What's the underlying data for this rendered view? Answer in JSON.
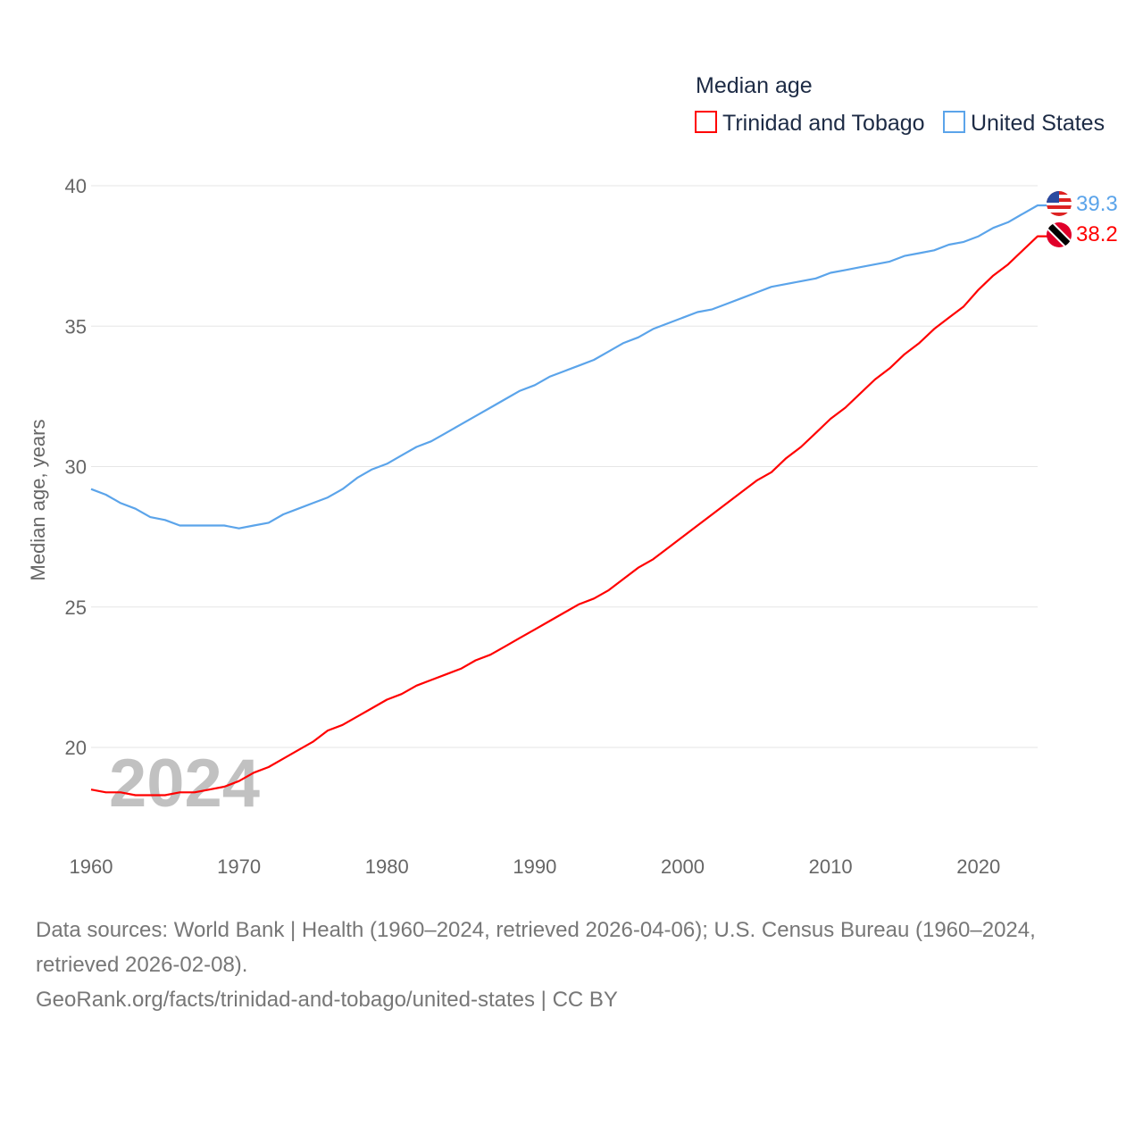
{
  "chart_data": {
    "type": "line",
    "title": "Median age",
    "xlabel": "",
    "ylabel": "Median age, years",
    "xlim": [
      1960,
      2024
    ],
    "ylim": [
      17,
      41
    ],
    "x_ticks": [
      "1960",
      "1970",
      "1980",
      "1990",
      "2000",
      "2010",
      "2020"
    ],
    "y_ticks": [
      "20",
      "25",
      "30",
      "35",
      "40"
    ],
    "grid": true,
    "legend_placement": "top-right",
    "watermark_year": "2024",
    "x": [
      1960,
      1961,
      1962,
      1963,
      1964,
      1965,
      1966,
      1967,
      1968,
      1969,
      1970,
      1971,
      1972,
      1973,
      1974,
      1975,
      1976,
      1977,
      1978,
      1979,
      1980,
      1981,
      1982,
      1983,
      1984,
      1985,
      1986,
      1987,
      1988,
      1989,
      1990,
      1991,
      1992,
      1993,
      1994,
      1995,
      1996,
      1997,
      1998,
      1999,
      2000,
      2001,
      2002,
      2003,
      2004,
      2005,
      2006,
      2007,
      2008,
      2009,
      2010,
      2011,
      2012,
      2013,
      2014,
      2015,
      2016,
      2017,
      2018,
      2019,
      2020,
      2021,
      2022,
      2023,
      2024
    ],
    "series": [
      {
        "name": "Trinidad and Tobago",
        "color": "#ff0000",
        "end_label": "38.2",
        "flag": "trinidad-and-tobago-flag",
        "values": [
          18.5,
          18.4,
          18.4,
          18.3,
          18.3,
          18.3,
          18.4,
          18.4,
          18.5,
          18.6,
          18.8,
          19.1,
          19.3,
          19.6,
          19.9,
          20.2,
          20.6,
          20.8,
          21.1,
          21.4,
          21.7,
          21.9,
          22.2,
          22.4,
          22.6,
          22.8,
          23.1,
          23.3,
          23.6,
          23.9,
          24.2,
          24.5,
          24.8,
          25.1,
          25.3,
          25.6,
          26.0,
          26.4,
          26.7,
          27.1,
          27.5,
          27.9,
          28.3,
          28.7,
          29.1,
          29.5,
          29.8,
          30.3,
          30.7,
          31.2,
          31.7,
          32.1,
          32.6,
          33.1,
          33.5,
          34.0,
          34.4,
          34.9,
          35.3,
          35.7,
          36.3,
          36.8,
          37.2,
          37.7,
          38.2
        ]
      },
      {
        "name": "United States",
        "color": "#5ba4ea",
        "end_label": "39.3",
        "flag": "united-states-flag",
        "values": [
          29.2,
          29.0,
          28.7,
          28.5,
          28.2,
          28.1,
          27.9,
          27.9,
          27.9,
          27.9,
          27.8,
          27.9,
          28.0,
          28.3,
          28.5,
          28.7,
          28.9,
          29.2,
          29.6,
          29.9,
          30.1,
          30.4,
          30.7,
          30.9,
          31.2,
          31.5,
          31.8,
          32.1,
          32.4,
          32.7,
          32.9,
          33.2,
          33.4,
          33.6,
          33.8,
          34.1,
          34.4,
          34.6,
          34.9,
          35.1,
          35.3,
          35.5,
          35.6,
          35.8,
          36.0,
          36.2,
          36.4,
          36.5,
          36.6,
          36.7,
          36.9,
          37.0,
          37.1,
          37.2,
          37.3,
          37.5,
          37.6,
          37.7,
          37.9,
          38.0,
          38.2,
          38.5,
          38.7,
          39.0,
          39.3
        ]
      }
    ]
  },
  "footer": {
    "sources": "Data sources: World Bank | Health (1960–2024, retrieved 2026-04-06); U.S. Census Bureau (1960–2024, retrieved 2026-02-08).",
    "attribution": "GeoRank.org/facts/trinidad-and-tobago/united-states | CC BY"
  }
}
